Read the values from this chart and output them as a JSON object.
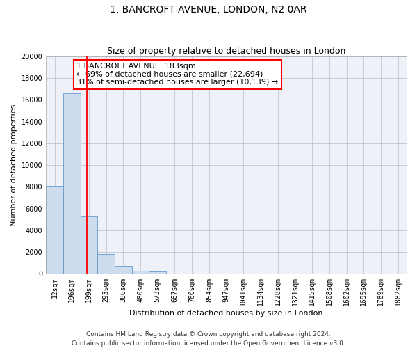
{
  "title": "1, BANCROFT AVENUE, LONDON, N2 0AR",
  "subtitle": "Size of property relative to detached houses in London",
  "xlabel": "Distribution of detached houses by size in London",
  "ylabel": "Number of detached properties",
  "categories": [
    "12sqm",
    "106sqm",
    "199sqm",
    "293sqm",
    "386sqm",
    "480sqm",
    "573sqm",
    "667sqm",
    "760sqm",
    "854sqm",
    "947sqm",
    "1041sqm",
    "1134sqm",
    "1228sqm",
    "1321sqm",
    "1415sqm",
    "1508sqm",
    "1602sqm",
    "1695sqm",
    "1789sqm",
    "1882sqm"
  ],
  "values": [
    8100,
    16600,
    5300,
    1850,
    750,
    300,
    200,
    0,
    0,
    0,
    0,
    0,
    0,
    0,
    0,
    0,
    0,
    0,
    0,
    0,
    0
  ],
  "bar_color": "#cddcee",
  "bar_edge_color": "#6699cc",
  "red_line_x": 1.87,
  "annotation_line1": "1 BANCROFT AVENUE: 183sqm",
  "annotation_line2": "← 69% of detached houses are smaller (22,694)",
  "annotation_line3": "31% of semi-detached houses are larger (10,139) →",
  "ylim": [
    0,
    20000
  ],
  "yticks": [
    0,
    2000,
    4000,
    6000,
    8000,
    10000,
    12000,
    14000,
    16000,
    18000,
    20000
  ],
  "grid_color": "#bbbbcc",
  "background_color": "#eef2f8",
  "footer_line1": "Contains HM Land Registry data © Crown copyright and database right 2024.",
  "footer_line2": "Contains public sector information licensed under the Open Government Licence v3.0.",
  "title_fontsize": 10,
  "subtitle_fontsize": 9,
  "xlabel_fontsize": 8,
  "ylabel_fontsize": 8,
  "tick_fontsize": 7,
  "annotation_fontsize": 8,
  "footer_fontsize": 6.5
}
